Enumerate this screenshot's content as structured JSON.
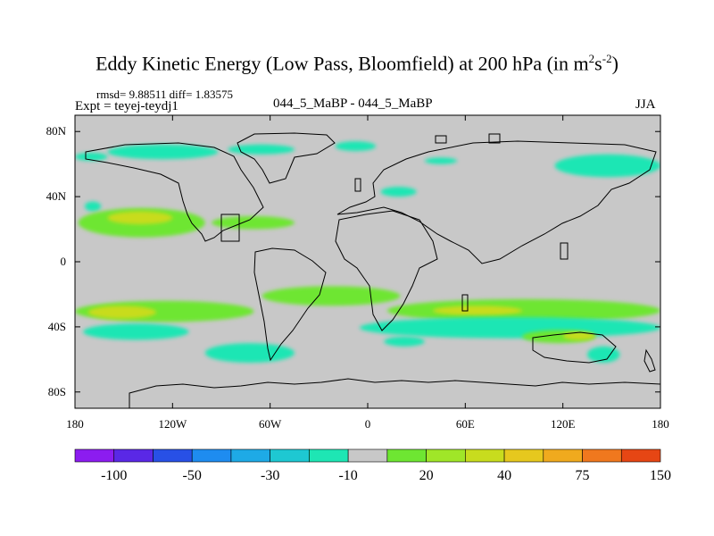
{
  "title": {
    "main": "Eddy Kinetic Energy (Low Pass, Bloomfield) at 200 hPa (in m",
    "sup1": "2",
    "mid": "s",
    "sup2": "-2",
    "end": ")"
  },
  "stats": "rmsd= 9.88511 diff= 1.83575",
  "expt": "Expt = teyej-teydj1",
  "center_label": "044_5_MaBP - 044_5_MaBP",
  "season": "JJA",
  "chart_data": {
    "type": "heatmap",
    "projection": "cylindrical-equidistant",
    "xlim": [
      -180,
      180
    ],
    "ylim": [
      -90,
      90
    ],
    "x_ticks": [
      {
        "value": -180,
        "label": "180"
      },
      {
        "value": -120,
        "label": "120W"
      },
      {
        "value": -60,
        "label": "60W"
      },
      {
        "value": 0,
        "label": "0"
      },
      {
        "value": 60,
        "label": "60E"
      },
      {
        "value": 120,
        "label": "120E"
      },
      {
        "value": 180,
        "label": "180"
      }
    ],
    "y_ticks": [
      {
        "value": 80,
        "label": "80N"
      },
      {
        "value": 40,
        "label": "40N"
      },
      {
        "value": 0,
        "label": "0"
      },
      {
        "value": -40,
        "label": "40S"
      },
      {
        "value": -80,
        "label": "80S"
      }
    ],
    "colorbar": {
      "colors": [
        "#8c1cf0",
        "#5a28e6",
        "#2850e6",
        "#1e8cf0",
        "#1eaae6",
        "#1ec8d2",
        "#1ee6b4",
        "#c8c8c8",
        "#6ee632",
        "#a0e628",
        "#c8dc1e",
        "#e6c81e",
        "#f0aa1e",
        "#f0781e",
        "#e64614"
      ],
      "labels": [
        {
          "index": 2,
          "text": "-100"
        },
        {
          "index": 4,
          "text": "-50"
        },
        {
          "index": 6,
          "text": "-30"
        },
        {
          "index": 8,
          "text": "-10"
        },
        {
          "index": 10,
          "text": "20"
        },
        {
          "index": 12,
          "text": "40"
        },
        {
          "index": 14,
          "text": "75"
        },
        {
          "index": 16,
          "text": "150"
        }
      ]
    },
    "anomaly_regions": [
      {
        "lon": [
          -180,
          -160
        ],
        "lat": [
          62,
          67
        ],
        "level": "-20"
      },
      {
        "lon": [
          -160,
          -92
        ],
        "lat": [
          63,
          72
        ],
        "level": "-20"
      },
      {
        "lon": [
          -86,
          -45
        ],
        "lat": [
          66,
          72
        ],
        "level": "-20"
      },
      {
        "lon": [
          -20,
          5
        ],
        "lat": [
          68,
          74
        ],
        "level": "-20"
      },
      {
        "lon": [
          35,
          55
        ],
        "lat": [
          60,
          64
        ],
        "level": "-20"
      },
      {
        "lon": [
          115,
          180
        ],
        "lat": [
          52,
          66
        ],
        "level": "-20"
      },
      {
        "lon": [
          -174,
          -164
        ],
        "lat": [
          31,
          37
        ],
        "level": "-20"
      },
      {
        "lon": [
          8,
          30
        ],
        "lat": [
          40,
          46
        ],
        "level": "-20"
      },
      {
        "lon": [
          -178,
          -100
        ],
        "lat": [
          15,
          33
        ],
        "level": "20"
      },
      {
        "lon": [
          -96,
          -45
        ],
        "lat": [
          20,
          28
        ],
        "level": "20"
      },
      {
        "lon": [
          -160,
          -120
        ],
        "lat": [
          23,
          31
        ],
        "level": "40"
      },
      {
        "lon": [
          -180,
          -70
        ],
        "lat": [
          -37,
          -24
        ],
        "level": "20"
      },
      {
        "lon": [
          -65,
          20
        ],
        "lat": [
          -27,
          -15
        ],
        "level": "20"
      },
      {
        "lon": [
          -172,
          -130
        ],
        "lat": [
          -35,
          -27
        ],
        "level": "40"
      },
      {
        "lon": [
          -175,
          -110
        ],
        "lat": [
          -48,
          -38
        ],
        "level": "-20"
      },
      {
        "lon": [
          -100,
          -45
        ],
        "lat": [
          -62,
          -50
        ],
        "level": "-20"
      },
      {
        "lon": [
          10,
          35
        ],
        "lat": [
          -52,
          -46
        ],
        "level": "-20"
      },
      {
        "lon": [
          12,
          180
        ],
        "lat": [
          -37,
          -23
        ],
        "level": "20"
      },
      {
        "lon": [
          40,
          95
        ],
        "lat": [
          -33,
          -27
        ],
        "level": "40"
      },
      {
        "lon": [
          -5,
          180
        ],
        "lat": [
          -47,
          -34
        ],
        "level": "-20"
      },
      {
        "lon": [
          95,
          140
        ],
        "lat": [
          -50,
          -42
        ],
        "level": "20"
      },
      {
        "lon": [
          120,
          140
        ],
        "lat": [
          -48,
          -43
        ],
        "level": "40"
      },
      {
        "lon": [
          135,
          155
        ],
        "lat": [
          -62,
          -52
        ],
        "level": "-20"
      }
    ]
  }
}
